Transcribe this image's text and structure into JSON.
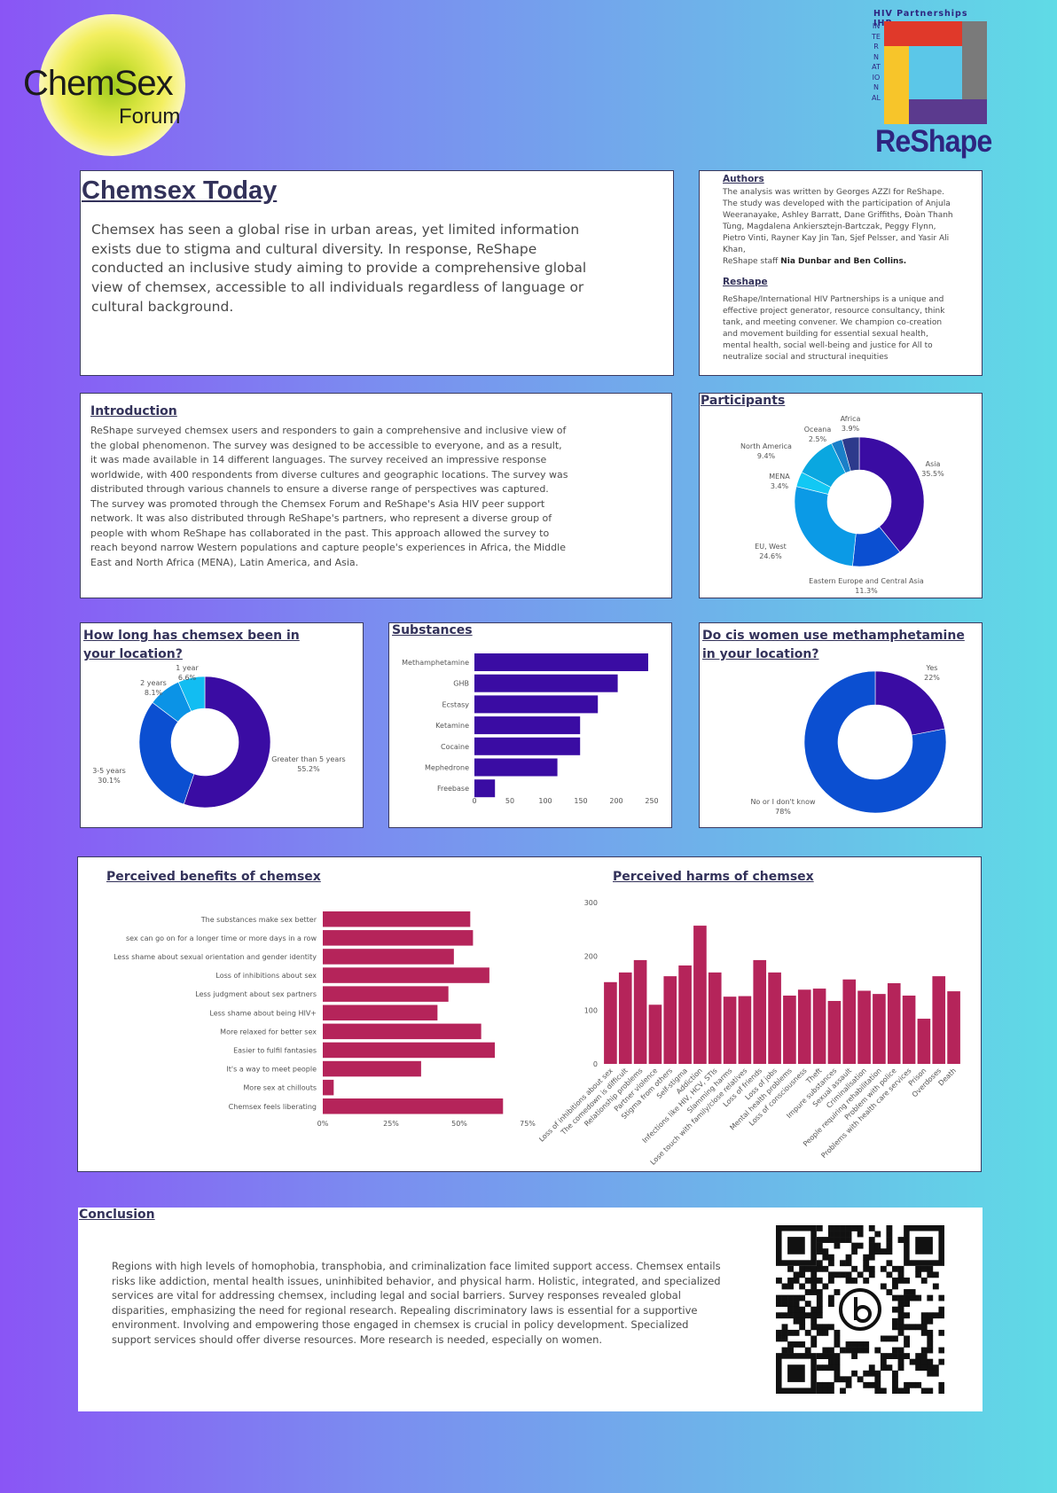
{
  "logos": {
    "left": {
      "line1": "ChemSex",
      "line2": "Forum"
    },
    "right": {
      "top": "HIV Partnerships IHP",
      "vertical": "INTERNATIONAL",
      "name": "ReShape"
    }
  },
  "header": {
    "title": "Chemsex Today",
    "intro": "Chemsex has seen a global rise in urban areas, yet limited information exists due to stigma and cultural diversity. In response, ReShape conducted an inclusive study aiming to provide a comprehensive global view of chemsex, accessible to all individuals regardless of language or cultural background."
  },
  "authors": {
    "heading": "Authors",
    "text": "The analysis was written by Georges AZZI for ReShape. The study was developed with the participation of Anjula Weeranayake, Ashley Barratt, Dane Griffiths, Đoàn Thanh Tùng, Magdalena Ankiersztejn-Bartczak, Peggy Flynn, Pietro Vinti, Rayner Kay Jin Tan, Sjef Pelsser, and Yasir Ali Khan,",
    "staff_prefix": "ReShape staff ",
    "staff_names": "Nia Dunbar and Ben Collins.",
    "reshape_heading": "Reshape",
    "reshape_text": "ReShape/International HIV Partnerships is a unique and effective project generator, resource consultancy, think tank, and meeting convener. We champion co-creation and movement building for essential sexual health, mental health, social well-being and justice for All to neutralize social and structural inequities"
  },
  "introduction": {
    "heading": "Introduction",
    "text": "ReShape surveyed chemsex users and responders to gain a comprehensive and inclusive view of the global phenomenon. The survey was designed to be accessible to everyone, and as a result, it was made available in 14 different languages. The survey received an impressive response worldwide, with 400 respondents from diverse cultures and geographic locations. The survey was distributed through various channels to ensure a diverse range of perspectives was captured. The survey was promoted through the Chemsex Forum and ReShape's Asia HIV peer support network. It was also distributed through ReShape's partners, who represent a diverse group of people with whom ReShape has collaborated in the past. This approach allowed the survey to reach beyond narrow Western populations and capture people's experiences in Africa, the Middle East and North Africa (MENA), Latin America, and Asia."
  },
  "conclusion": {
    "heading": "Conclusion",
    "text": "Regions with high levels of homophobia, transphobia, and criminalization face limited support access. Chemsex entails risks like addiction, mental health issues, uninhibited behavior, and physical harm. Holistic, integrated, and specialized services are vital for addressing chemsex, including legal and social barriers. Survey responses revealed global disparities, emphasizing the need for regional research. Repealing discriminatory laws is essential for a supportive environment. Involving and empowering those engaged in chemsex is crucial in policy development. Specialized support services should offer diverse resources. More research is needed, especially on women."
  },
  "chart_data": [
    {
      "id": "participants",
      "type": "pie",
      "title": "Participants",
      "categories": [
        "Asia",
        "Eastern Europe and Central Asia",
        "EU, West",
        "MENA",
        "North America",
        "Oceana",
        "Africa"
      ],
      "values": [
        35.5,
        11.3,
        24.6,
        3.4,
        9.4,
        2.5,
        3.9
      ],
      "value_labels": [
        "35.5%",
        "11.3%",
        "24.6%",
        "3.4%",
        "9.4%",
        "2.5%",
        "3.9%"
      ],
      "colors": [
        "#3a0ca3",
        "#0b4fd1",
        "#0b9ae6",
        "#12c8f4",
        "#0aa7e0",
        "#1a7fc8",
        "#2d3a8c"
      ],
      "extra_colors": [
        "#3b5fb0",
        "#445"
      ]
    },
    {
      "id": "how-long",
      "type": "pie",
      "title": "How long has chemsex been in your location?",
      "categories": [
        "Greater than 5 years",
        "3-5 years",
        "2 years",
        "1 year"
      ],
      "values": [
        55.2,
        30.1,
        8.1,
        6.6
      ],
      "value_labels": [
        "55.2%",
        "30.1%",
        "8.1%",
        "6.6%"
      ],
      "colors": [
        "#3a0ca3",
        "#0b4fd1",
        "#0b93e6",
        "#12bdf2"
      ]
    },
    {
      "id": "substances",
      "type": "bar",
      "title": "Substances",
      "categories": [
        "Methamphetamine",
        "GHB",
        "Ecstasy",
        "Ketamine",
        "Cocaine",
        "Mephedrone",
        "Freebase"
      ],
      "values": [
        245,
        202,
        174,
        149,
        149,
        117,
        29
      ],
      "xlim": [
        0,
        250
      ],
      "xticks": [
        "0",
        "50",
        "100",
        "150",
        "200",
        "250"
      ],
      "color": "#3a0ca3"
    },
    {
      "id": "cis-women",
      "type": "pie",
      "title": "Do cis women use methamphetamine in your location?",
      "categories": [
        "Yes",
        "No or I don't know"
      ],
      "values": [
        22,
        78
      ],
      "value_labels": [
        "22%",
        "78%"
      ],
      "colors": [
        "#3a0ca3",
        "#0b4fd1"
      ]
    },
    {
      "id": "benefits",
      "type": "bar",
      "title": "Perceived benefits of chemsex",
      "categories": [
        "The substances make sex better",
        "sex can go on for a longer time or more days in a row",
        "Less shame about sexual orientation and gender identity",
        "Loss of inhibitions about sex",
        "Less judgment about sex partners",
        "Less shame about being HIV+",
        "More relaxed for better sex",
        "Easier to fulfil fantasies",
        "It's a way to meet people",
        "More sex at chillouts",
        "Chemsex feels liberating"
      ],
      "values": [
        54,
        55,
        48,
        61,
        46,
        42,
        58,
        63,
        36,
        4,
        66
      ],
      "xlim": [
        0,
        75
      ],
      "xticks": [
        "0%",
        "25%",
        "50%",
        "75%"
      ],
      "color": "#b5245a"
    },
    {
      "id": "harms",
      "type": "bar",
      "title": "Perceived harms of chemsex",
      "categories": [
        "Loss of inhibitions about sex",
        "The comedown is difficult",
        "Relationship problems",
        "Partner violence",
        "Stigma from others",
        "Self-stigma",
        "Addiction",
        "Infections like HIV, HCV, STIs",
        "Slamming harms",
        "Lose touch with family/close relatives",
        "Loss of friends",
        "Loss of jobs",
        "Mental health problems",
        "Loss of consciousness",
        "Theft",
        "Impure substances",
        "Sexual assault",
        "Criminalisation",
        "People requiring rehabilitation",
        "Problem with police",
        "Problems with health care services",
        "Prison",
        "Overdoses",
        "Death"
      ],
      "values": [
        152,
        170,
        193,
        110,
        163,
        183,
        257,
        170,
        125,
        126,
        193,
        170,
        127,
        138,
        140,
        117,
        157,
        136,
        130,
        150,
        127,
        84,
        163,
        135
      ],
      "ylim": [
        0,
        300
      ],
      "yticks": [
        "0",
        "100",
        "200",
        "300"
      ],
      "color": "#b5245a"
    }
  ]
}
